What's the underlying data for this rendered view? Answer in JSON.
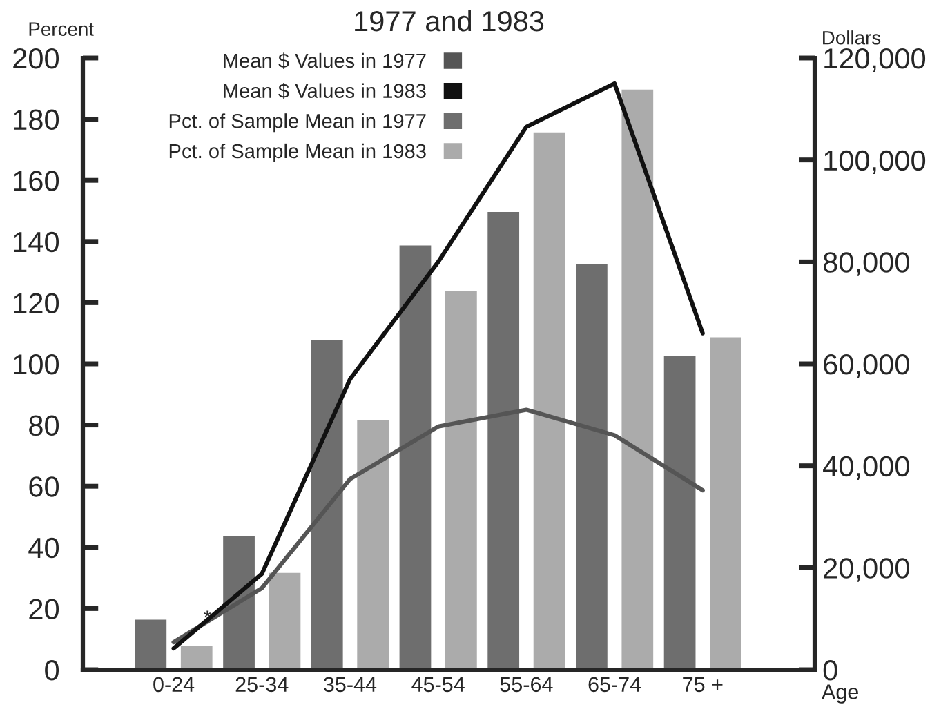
{
  "chart_data": {
    "type": "bar",
    "title": "1977 and 1983",
    "ylabel": "Percent",
    "y2label": "Dollars",
    "xlabel": "Age",
    "categories": [
      "0-24",
      "25-34",
      "35-44",
      "45-54",
      "55-64",
      "65-74",
      "75 +"
    ],
    "series": [
      {
        "name": "Mean $ Values in 1977",
        "type": "line",
        "axis": "y2",
        "color": "#555555",
        "values": [
          5400,
          16000,
          37400,
          47700,
          51000,
          46000,
          35200
        ]
      },
      {
        "name": "Mean $ Values in 1983",
        "type": "line",
        "axis": "y2",
        "color": "#111111",
        "values": [
          4200,
          18800,
          57000,
          80000,
          106500,
          115000,
          66000
        ]
      },
      {
        "name": "Pct. of Sample Mean in 1977",
        "color": "#6e6e6e",
        "values": [
          16.7,
          44,
          108,
          139,
          150,
          133,
          103
        ]
      },
      {
        "name": "Pct. of Sample Mean in 1983",
        "color": "#ababab",
        "values": [
          8,
          32,
          82,
          124,
          176,
          190,
          109
        ]
      }
    ],
    "ylim": [
      0,
      200
    ],
    "yticks": [
      0,
      20,
      40,
      60,
      80,
      100,
      120,
      140,
      160,
      180,
      200
    ],
    "y2lim": [
      0,
      120000
    ],
    "y2ticks": [
      {
        "value": 0,
        "label": "0"
      },
      {
        "value": 20000,
        "label": "20,000"
      },
      {
        "value": 40000,
        "label": "40,000"
      },
      {
        "value": 60000,
        "label": "60,000"
      },
      {
        "value": 80000,
        "label": "80,000"
      },
      {
        "value": 100000,
        "label": "100,000"
      },
      {
        "value": 120000,
        "label": "120,000"
      }
    ],
    "annotations": [
      "*"
    ],
    "legend": "top left",
    "grid": false
  }
}
